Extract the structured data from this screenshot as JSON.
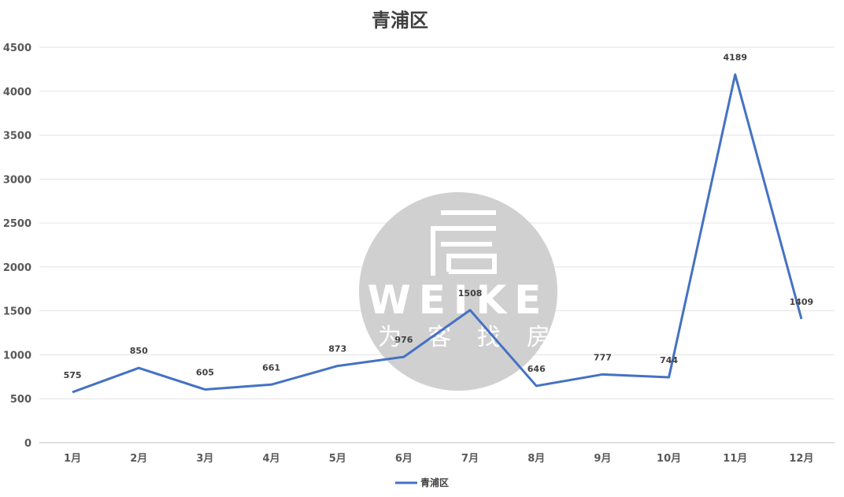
{
  "chart_data": {
    "type": "line",
    "title": "青浦区",
    "categories": [
      "1月",
      "2月",
      "3月",
      "4月",
      "5月",
      "6月",
      "7月",
      "8月",
      "9月",
      "10月",
      "11月",
      "12月"
    ],
    "series": [
      {
        "name": "青浦区",
        "values": [
          575,
          850,
          605,
          661,
          873,
          976,
          1508,
          646,
          777,
          744,
          4189,
          1409
        ]
      }
    ],
    "xlabel": "",
    "ylabel": "",
    "ylim": [
      0,
      4500
    ],
    "yticks": [
      0,
      500,
      1000,
      1500,
      2000,
      2500,
      3000,
      3500,
      4000,
      4500
    ],
    "grid": true,
    "legend": "bottom",
    "series_color": "#4472C4"
  },
  "watermark": {
    "brand": "WEIKE",
    "tagline": [
      "为",
      "客",
      "找",
      "房"
    ],
    "logo_glyph": "房"
  }
}
